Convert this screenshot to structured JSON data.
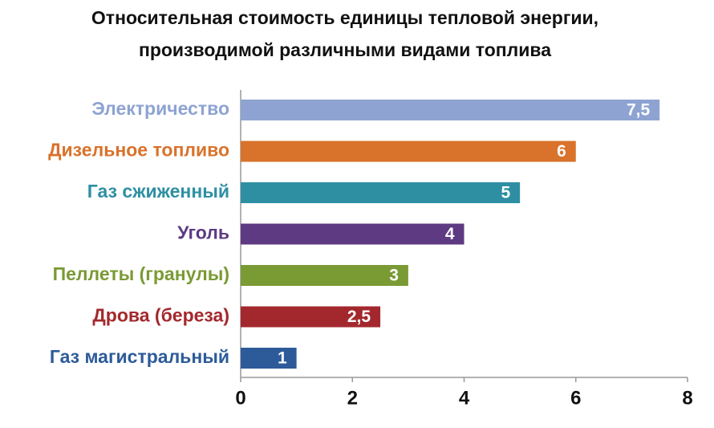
{
  "chart_data": {
    "type": "barh",
    "title": [
      "Относительная стоимость единицы тепловой энергии,",
      "производимой различными видами топлива"
    ],
    "categories": [
      "Электричество",
      "Дизельное топливо",
      "Газ сжиженный",
      "Уголь",
      "Пеллеты (гранулы)",
      "Дрова (береза)",
      "Газ магистральный"
    ],
    "values": [
      7.5,
      6,
      5,
      4,
      3,
      2.5,
      1
    ],
    "value_labels": [
      "7,5",
      "6",
      "5",
      "4",
      "3",
      "2,5",
      "1"
    ],
    "colors": [
      "#8ea3d2",
      "#d9722a",
      "#2e8fa3",
      "#5e3a82",
      "#7a9a34",
      "#a3282d",
      "#2d5b9a"
    ],
    "xlim": [
      0,
      8
    ],
    "xticks": [
      0,
      2,
      4,
      6,
      8
    ],
    "grid": false
  }
}
